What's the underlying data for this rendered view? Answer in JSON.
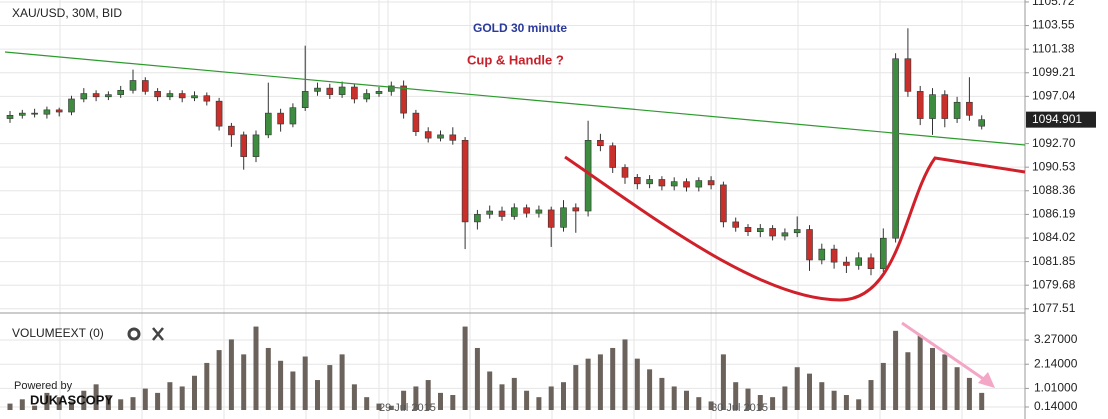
{
  "chart_data": {
    "type": "candlestick",
    "title": "XAU/USD, 30M, BID",
    "annotations": [
      "GOLD 30 minute",
      "Cup & Handle ?"
    ],
    "volume_title": "VOLUMEEXT (0)",
    "branding": [
      "Powered by",
      "DUKASCOPY"
    ],
    "xticks": [
      {
        "value": 30,
        "label": "29 Jul 2015"
      },
      {
        "value": 57,
        "label": "30 Jul 2015"
      }
    ],
    "up_color": "#3d8c40",
    "down_color": "#c9302c",
    "volume_color": "#6b625c",
    "grid": true,
    "ylim": [
      1077.4,
      1105.9
    ],
    "yticks": [
      1105.72,
      1103.55,
      1101.38,
      1099.21,
      1097.04,
      {
        "value": 1092.7,
        "label": "1092.70"
      },
      1090.53,
      1088.36,
      1086.19,
      1084.02,
      1081.85,
      1079.68,
      1077.51
    ],
    "y2lim": [
      0,
      4.3
    ],
    "y2ticks": [
      {
        "value": 3.27,
        "label": "3.27000"
      },
      {
        "value": 2.14,
        "label": "2.14000"
      },
      {
        "value": 1.01,
        "label": "1.01000"
      },
      {
        "value": 0.14,
        "label": "0.14000"
      }
    ],
    "open": [
      1095.0,
      1095.3,
      1095.5,
      1095.4,
      1095.8,
      1095.6,
      1096.8,
      1097.3,
      1097.0,
      1097.2,
      1097.6,
      1098.5,
      1097.5,
      1097.0,
      1097.3,
      1096.9,
      1097.1,
      1096.6,
      1094.3,
      1093.5,
      1091.5,
      1093.5,
      1095.5,
      1094.5,
      1096.0,
      1097.5,
      1097.8,
      1097.2,
      1097.9,
      1096.8,
      1097.3,
      1097.5,
      1098.0,
      1095.5,
      1093.8,
      1093.2,
      1093.5,
      1093.0,
      1085.5,
      1086.2,
      1086.5,
      1086.0,
      1086.8,
      1086.3,
      1086.6,
      1085.0,
      1086.8,
      1086.5,
      1093.0,
      1092.5,
      1090.5,
      1089.6,
      1089.0,
      1089.4,
      1088.8,
      1089.2,
      1088.7,
      1089.3,
      1088.9,
      1085.5,
      1085.0,
      1084.6,
      1084.9,
      1084.2,
      1084.5,
      1084.8,
      1082.0,
      1083.0,
      1081.8,
      1081.5,
      1082.2,
      1081.2,
      1084.0,
      1100.5,
      1097.5,
      1095.0,
      1097.2,
      1095.0,
      1096.5,
      1094.3
    ],
    "high": [
      1095.7,
      1095.8,
      1095.9,
      1096.1,
      1096.0,
      1097.1,
      1097.8,
      1097.6,
      1097.5,
      1098.0,
      1099.5,
      1098.8,
      1097.8,
      1097.6,
      1097.6,
      1097.5,
      1097.4,
      1096.9,
      1094.6,
      1093.8,
      1093.9,
      1098.3,
      1095.9,
      1096.4,
      1101.7,
      1098.3,
      1098.2,
      1098.4,
      1098.2,
      1097.7,
      1097.9,
      1098.4,
      1098.5,
      1095.8,
      1094.2,
      1093.9,
      1094.2,
      1093.3,
      1086.6,
      1087.0,
      1086.9,
      1087.2,
      1087.1,
      1087.0,
      1086.9,
      1087.5,
      1087.2,
      1094.8,
      1093.6,
      1092.8,
      1090.8,
      1089.9,
      1089.8,
      1089.7,
      1089.6,
      1089.5,
      1089.6,
      1089.7,
      1089.2,
      1085.9,
      1085.3,
      1085.3,
      1085.2,
      1084.9,
      1086.0,
      1085.2,
      1083.5,
      1083.4,
      1082.3,
      1082.7,
      1082.6,
      1084.9,
      1101.0,
      1103.3,
      1098.0,
      1097.8,
      1097.6,
      1097.0,
      1098.8,
      1095.3
    ],
    "low": [
      1094.6,
      1095.0,
      1095.1,
      1095.0,
      1095.2,
      1095.3,
      1096.5,
      1096.6,
      1096.7,
      1096.9,
      1097.3,
      1097.2,
      1096.6,
      1096.7,
      1096.5,
      1096.6,
      1096.2,
      1093.9,
      1092.4,
      1090.3,
      1091.0,
      1093.2,
      1093.8,
      1094.2,
      1095.7,
      1097.1,
      1096.8,
      1096.9,
      1096.4,
      1096.5,
      1097.0,
      1097.1,
      1095.0,
      1093.4,
      1092.8,
      1092.9,
      1092.6,
      1083.0,
      1084.8,
      1085.8,
      1085.6,
      1085.7,
      1085.9,
      1085.9,
      1083.2,
      1084.6,
      1084.5,
      1086.0,
      1092.0,
      1090.0,
      1089.0,
      1088.5,
      1088.6,
      1088.4,
      1088.4,
      1088.3,
      1088.3,
      1088.5,
      1085.0,
      1084.6,
      1084.2,
      1084.1,
      1083.8,
      1083.8,
      1084.1,
      1081.0,
      1081.6,
      1081.2,
      1080.8,
      1081.1,
      1080.6,
      1080.9,
      1083.6,
      1097.0,
      1094.4,
      1093.5,
      1094.2,
      1094.6,
      1094.8,
      1094.0
    ],
    "close": [
      1095.3,
      1095.5,
      1095.4,
      1095.8,
      1095.6,
      1096.8,
      1097.3,
      1097.0,
      1097.2,
      1097.6,
      1098.5,
      1097.5,
      1097.0,
      1097.3,
      1096.9,
      1097.1,
      1096.6,
      1094.3,
      1093.5,
      1091.5,
      1093.5,
      1095.5,
      1094.5,
      1096.0,
      1097.5,
      1097.8,
      1097.2,
      1097.9,
      1096.8,
      1097.3,
      1097.5,
      1098.0,
      1095.5,
      1093.8,
      1093.2,
      1093.5,
      1093.0,
      1085.5,
      1086.2,
      1086.5,
      1086.0,
      1086.8,
      1086.3,
      1086.6,
      1085.0,
      1086.8,
      1086.5,
      1093.0,
      1092.5,
      1090.5,
      1089.6,
      1089.0,
      1089.4,
      1088.8,
      1089.2,
      1088.7,
      1089.3,
      1088.9,
      1085.5,
      1085.0,
      1084.6,
      1084.9,
      1084.2,
      1084.5,
      1084.8,
      1082.0,
      1083.0,
      1081.8,
      1081.5,
      1082.2,
      1081.2,
      1084.0,
      1100.5,
      1097.5,
      1095.0,
      1097.2,
      1095.0,
      1096.5,
      1095.3,
      1094.901
    ],
    "volume": [
      0.3,
      0.5,
      0.2,
      0.8,
      0.6,
      0.4,
      0.9,
      1.2,
      0.7,
      0.5,
      0.6,
      1.0,
      0.8,
      1.3,
      1.1,
      1.6,
      2.2,
      2.8,
      3.3,
      2.6,
      3.9,
      2.9,
      2.3,
      1.8,
      2.5,
      1.4,
      2.1,
      2.6,
      1.2,
      0.6,
      0.3,
      0.2,
      0.9,
      1.1,
      1.4,
      0.8,
      0.7,
      3.9,
      2.9,
      1.8,
      1.2,
      1.5,
      0.9,
      0.6,
      1.1,
      1.3,
      2.1,
      2.4,
      2.6,
      2.9,
      3.3,
      2.4,
      1.9,
      1.5,
      1.1,
      0.9,
      0.6,
      0.4,
      2.6,
      1.3,
      1.0,
      0.7,
      0.6,
      1.1,
      2.0,
      1.7,
      1.3,
      0.9,
      0.7,
      0.5,
      1.4,
      2.2,
      3.7,
      2.7,
      3.5,
      2.9,
      2.6,
      2.0,
      1.5,
      0.8
    ]
  }
}
